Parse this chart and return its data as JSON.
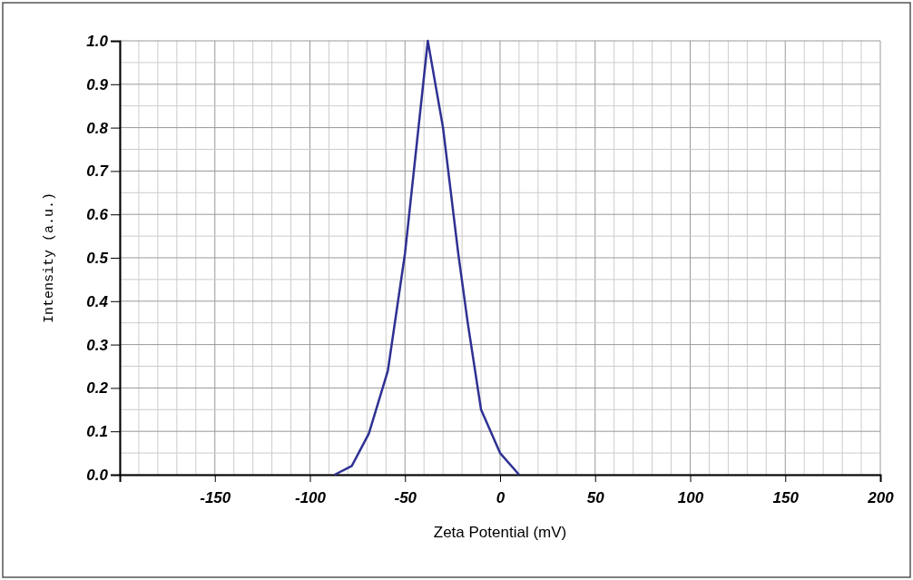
{
  "chart_data": {
    "type": "line",
    "xlabel": "Zeta Potential (mV)",
    "ylabel": "Intensity (a.u.)",
    "x": [
      -87,
      -78,
      -69,
      -59,
      -50,
      -38,
      -30,
      -22,
      -17,
      -10,
      0,
      10
    ],
    "series": [
      {
        "color": "#2e3192",
        "values": [
          0,
          0.02,
          0.095,
          0.24,
          0.51,
          1.0,
          0.8,
          0.51,
          0.35,
          0.15,
          0.05,
          0
        ]
      }
    ],
    "xlim": [
      -200,
      200
    ],
    "xticks": [
      {
        "value": -200,
        "label": null
      },
      -150,
      -100,
      -50,
      0,
      50,
      100,
      150,
      200
    ],
    "ylim": [
      0,
      1
    ],
    "yticks": [
      {
        "value": 0,
        "label": "0.0"
      },
      {
        "value": 0.1,
        "label": "0.1"
      },
      {
        "value": 0.2,
        "label": "0.2"
      },
      {
        "value": 0.3,
        "label": "0.3"
      },
      {
        "value": 0.4,
        "label": "0.4"
      },
      {
        "value": 0.5,
        "label": "0.5"
      },
      {
        "value": 0.6,
        "label": "0.6"
      },
      {
        "value": 0.7,
        "label": "0.7"
      },
      {
        "value": 0.8,
        "label": "0.8"
      },
      {
        "value": 0.9,
        "label": "0.9"
      },
      {
        "value": 1,
        "label": "1.0"
      }
    ],
    "grid": true,
    "marker": "none",
    "line_style": "solid"
  }
}
